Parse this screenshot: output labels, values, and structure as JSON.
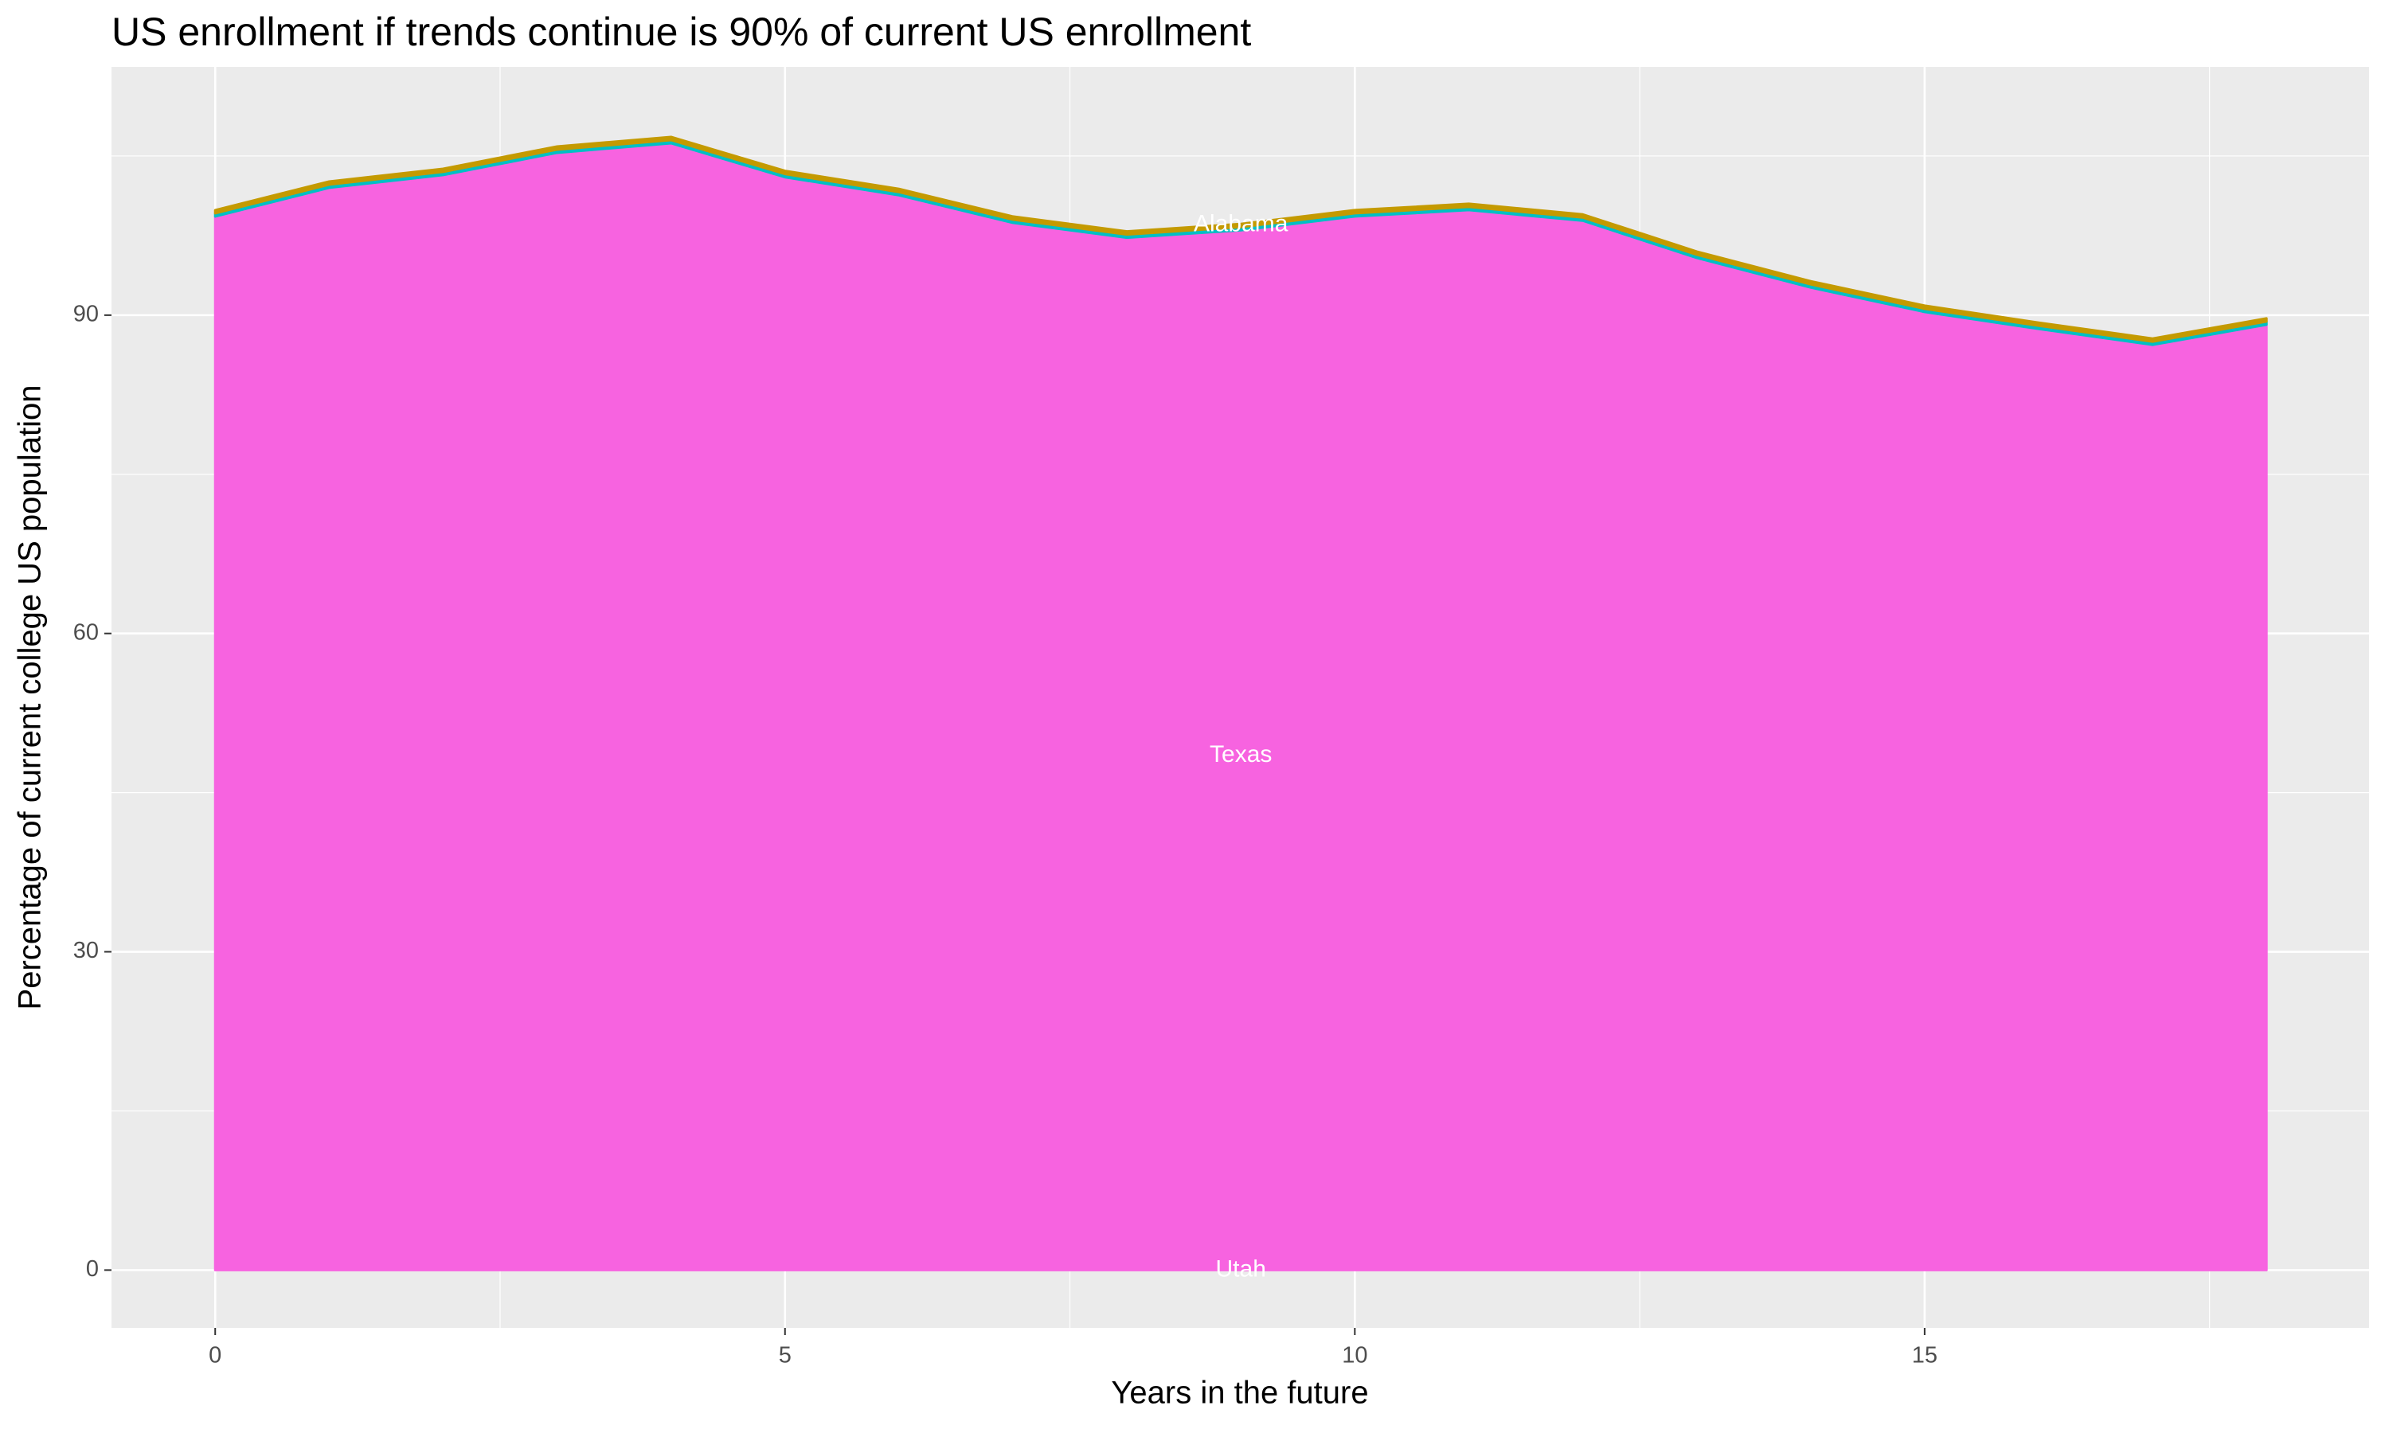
{
  "chart_data": {
    "type": "stacked_area",
    "title": "US enrollment if trends continue is 90% of current US enrollment",
    "x_label": "Years in the future",
    "y_label": "Percentage of current college US population",
    "x": [
      0,
      1,
      2,
      3,
      4,
      5,
      6,
      7,
      8,
      9,
      10,
      11,
      12,
      13,
      14,
      15,
      16,
      17,
      18
    ],
    "series": [
      {
        "color": "#F763E0",
        "values": [
          99.3,
          102.0,
          103.2,
          105.3,
          106.2,
          103.0,
          101.3,
          98.7,
          97.3,
          98.0,
          99.3,
          99.9,
          98.9,
          95.4,
          92.6,
          90.3,
          88.7,
          87.2,
          89.1
        ]
      },
      {
        "color": "#00BFC4",
        "values": [
          0.3,
          0.3,
          0.3,
          0.3,
          0.3,
          0.3,
          0.3,
          0.3,
          0.3,
          0.3,
          0.3,
          0.3,
          0.3,
          0.3,
          0.3,
          0.3,
          0.3,
          0.3,
          0.3
        ]
      },
      {
        "color": "#C49A00",
        "values": [
          0.3,
          0.3,
          0.3,
          0.3,
          0.3,
          0.3,
          0.3,
          0.3,
          0.3,
          0.3,
          0.3,
          0.3,
          0.3,
          0.3,
          0.3,
          0.3,
          0.3,
          0.3,
          0.3
        ]
      }
    ],
    "annotations": [
      {
        "text": "Alabama",
        "x": 9,
        "y": 98.5
      },
      {
        "text": "Texas",
        "x": 9,
        "y": 48.5
      },
      {
        "text": "Utah",
        "x": 9,
        "y": 0
      }
    ],
    "xlim": [
      -0.91,
      18.9
    ],
    "ylim": [
      -5.45,
      113.4
    ],
    "xticks": [
      0,
      5,
      10,
      15
    ],
    "yticks": [
      0,
      30,
      60,
      90
    ],
    "grid": true
  }
}
